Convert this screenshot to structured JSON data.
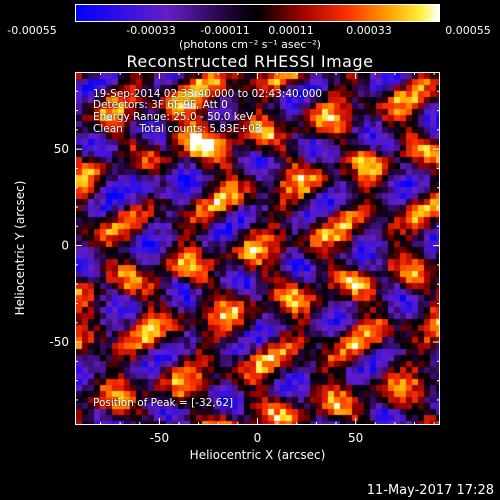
{
  "colorbar": {
    "ticks": [
      "-0.00055",
      "-0.00033",
      "-0.00011",
      "0.00011",
      "0.00033",
      "0.00055"
    ],
    "unit_label": "(photons cm⁻² s⁻¹ asec⁻²)"
  },
  "annotations": {
    "line1": "19-Sep-2014 02:33:40.000 to 02:43:40.000",
    "line2": "Detectors: 3F 6F 9F, Att 0",
    "line3": "Energy Range: 25.0 - 50.0 keV",
    "line4": "Clean     Total counts: 5.83E+03",
    "peak": "Position of Peak = [-32,62]"
  },
  "footer_timestamp": "11-May-2017 17:28",
  "chart_data": {
    "type": "heatmap",
    "title": "Reconstructed RHESSI Image",
    "xlabel": "Heliocentric X (arcsec)",
    "ylabel": "Heliocentric Y (arcsec)",
    "xlim": [
      -93,
      93
    ],
    "ylim": [
      -93,
      90
    ],
    "xticks": [
      -50,
      0,
      50
    ],
    "yticks": [
      50,
      0,
      -50
    ],
    "colorbar_range": [
      -0.00055,
      0.00055
    ],
    "colorbar_scale": "blue-purple-black-red-orange-yellow-white",
    "peak_position": [
      -32,
      62
    ],
    "grid": false
  }
}
